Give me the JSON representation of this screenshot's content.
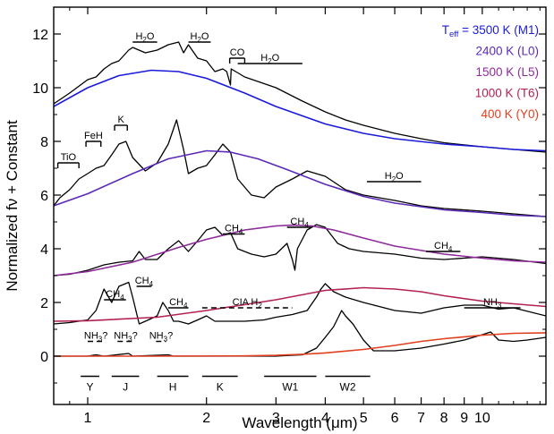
{
  "chart_data": {
    "type": "line",
    "xlabel": "Wavelength (μm)",
    "ylabel": "Normalized fν + Constant",
    "x_scale": "log",
    "xlim": [
      0.82,
      14.5
    ],
    "ylim": [
      -1.8,
      13.0
    ],
    "x_ticks": [
      {
        "value": 1,
        "label": "1"
      },
      {
        "value": 2,
        "label": "2"
      },
      {
        "value": 3,
        "label": "3"
      },
      {
        "value": 4,
        "label": "4"
      },
      {
        "value": 5,
        "label": "5"
      },
      {
        "value": 6,
        "label": "6"
      },
      {
        "value": 7,
        "label": "7"
      },
      {
        "value": 8,
        "label": "8"
      },
      {
        "value": 9,
        "label": "9"
      },
      {
        "value": 10,
        "label": "10"
      }
    ],
    "y_ticks": [
      {
        "value": 0,
        "label": "0"
      },
      {
        "value": 2,
        "label": "2"
      },
      {
        "value": 4,
        "label": "4"
      },
      {
        "value": 6,
        "label": "6"
      },
      {
        "value": 8,
        "label": "8"
      },
      {
        "value": 10,
        "label": "10"
      },
      {
        "value": 12,
        "label": "12"
      }
    ],
    "legend": {
      "position": "top-right",
      "entries": [
        {
          "prefix": "T",
          "sub": "eff",
          "rest": " = 3500 K (M1)",
          "color": "#1a1adb"
        },
        {
          "prefix": "",
          "sub": "",
          "rest": "2400 K (L0)",
          "color": "#5b2ab8"
        },
        {
          "prefix": "",
          "sub": "",
          "rest": "1500 K (L5)",
          "color": "#8e2a9b"
        },
        {
          "prefix": "",
          "sub": "",
          "rest": "1000 K (T6)",
          "color": "#b3234f"
        },
        {
          "prefix": "",
          "sub": "",
          "rest": "400 K (Y0)",
          "color": "#e0401e"
        }
      ]
    },
    "series": [
      {
        "name": "3500 K (M1) spectrum",
        "color": "#000000",
        "x": [
          0.82,
          0.9,
          1.0,
          1.05,
          1.1,
          1.15,
          1.2,
          1.27,
          1.3,
          1.4,
          1.5,
          1.6,
          1.7,
          1.75,
          1.8,
          1.9,
          2.0,
          2.1,
          2.2,
          2.25,
          2.3,
          2.31,
          2.5,
          3.0,
          3.5,
          4.0,
          4.5,
          5.0,
          6.0,
          7.0,
          8.0,
          10.0,
          12.0,
          14.5
        ],
        "values": [
          9.4,
          9.8,
          10.3,
          10.4,
          10.7,
          10.9,
          11.0,
          11.4,
          11.5,
          11.3,
          11.4,
          11.6,
          11.7,
          11.3,
          11.6,
          11.1,
          11.0,
          10.6,
          10.7,
          10.6,
          10.1,
          10.7,
          10.4,
          10.0,
          9.5,
          9.1,
          8.8,
          8.6,
          8.3,
          8.1,
          7.95,
          7.8,
          7.7,
          7.6
        ]
      },
      {
        "name": "3500 K (M1) blackbody",
        "color": "#1a1adb",
        "x": [
          0.82,
          1.0,
          1.2,
          1.45,
          1.7,
          2.0,
          2.5,
          3.0,
          4.0,
          5.0,
          6.0,
          8.0,
          10.0,
          12.0,
          14.5
        ],
        "values": [
          9.3,
          10.0,
          10.45,
          10.65,
          10.6,
          10.35,
          9.8,
          9.3,
          8.65,
          8.3,
          8.1,
          7.9,
          7.8,
          7.7,
          7.65
        ]
      },
      {
        "name": "2400 K (L0) spectrum",
        "color": "#000000",
        "x": [
          0.82,
          0.85,
          0.9,
          0.95,
          1.0,
          1.05,
          1.1,
          1.15,
          1.2,
          1.25,
          1.3,
          1.4,
          1.5,
          1.6,
          1.68,
          1.75,
          1.8,
          1.9,
          2.0,
          2.1,
          2.2,
          2.3,
          2.4,
          2.6,
          2.8,
          3.0,
          3.3,
          3.6,
          4.0,
          4.5,
          5.0,
          6.0,
          7.0,
          8.0,
          10.0,
          12.0,
          14.5
        ],
        "values": [
          5.6,
          5.9,
          6.2,
          6.6,
          6.8,
          7.0,
          7.1,
          7.5,
          7.9,
          8.0,
          7.4,
          6.9,
          7.2,
          7.9,
          8.8,
          7.7,
          6.8,
          7.0,
          7.1,
          7.5,
          7.9,
          7.6,
          6.6,
          6.0,
          5.9,
          6.3,
          6.6,
          6.9,
          6.7,
          6.2,
          6.0,
          5.8,
          5.6,
          5.5,
          5.4,
          5.3,
          5.2
        ]
      },
      {
        "name": "2400 K (L0) blackbody",
        "color": "#5b2ab8",
        "x": [
          0.82,
          1.0,
          1.3,
          1.6,
          2.0,
          2.3,
          2.7,
          3.2,
          4.0,
          5.0,
          6.0,
          8.0,
          10.0,
          12.0,
          14.5
        ],
        "values": [
          5.6,
          6.05,
          6.8,
          7.35,
          7.65,
          7.6,
          7.35,
          6.95,
          6.4,
          5.95,
          5.7,
          5.45,
          5.35,
          5.25,
          5.2
        ]
      },
      {
        "name": "1500 K (L5) spectrum",
        "color": "#000000",
        "x": [
          0.82,
          0.9,
          1.0,
          1.1,
          1.2,
          1.3,
          1.35,
          1.4,
          1.5,
          1.6,
          1.7,
          1.8,
          1.9,
          2.0,
          2.1,
          2.2,
          2.3,
          2.4,
          2.6,
          2.8,
          3.0,
          3.2,
          3.3,
          3.35,
          3.4,
          3.6,
          3.8,
          4.0,
          4.3,
          4.6,
          5.0,
          6.0,
          7.0,
          8.0,
          10.0,
          12.0,
          14.5
        ],
        "values": [
          3.0,
          3.05,
          3.2,
          3.4,
          3.5,
          3.55,
          3.9,
          3.6,
          3.6,
          4.0,
          4.3,
          3.9,
          4.3,
          4.7,
          4.8,
          4.5,
          4.6,
          4.0,
          3.8,
          3.7,
          3.8,
          4.2,
          3.6,
          3.2,
          4.0,
          4.7,
          4.9,
          4.8,
          4.2,
          4.0,
          3.9,
          3.8,
          3.65,
          3.6,
          3.7,
          3.6,
          3.45
        ]
      },
      {
        "name": "1500 K (L5) blackbody",
        "color": "#8e2a9b",
        "x": [
          0.82,
          1.0,
          1.3,
          1.7,
          2.0,
          2.5,
          3.0,
          3.3,
          3.7,
          4.2,
          5.0,
          6.0,
          8.0,
          10.0,
          12.0,
          14.5
        ],
        "values": [
          3.0,
          3.15,
          3.5,
          4.05,
          4.35,
          4.7,
          4.85,
          4.88,
          4.85,
          4.7,
          4.4,
          4.1,
          3.8,
          3.65,
          3.55,
          3.5
        ]
      },
      {
        "name": "1000 K (T6) spectrum",
        "color": "#000000",
        "x": [
          0.82,
          0.9,
          1.0,
          1.05,
          1.1,
          1.15,
          1.2,
          1.27,
          1.3,
          1.35,
          1.4,
          1.5,
          1.55,
          1.6,
          1.65,
          1.7,
          1.8,
          1.9,
          2.0,
          2.1,
          2.3,
          2.5,
          2.8,
          3.0,
          3.3,
          3.6,
          3.8,
          3.9,
          4.0,
          4.2,
          4.5,
          5.0,
          6.0,
          7.0,
          8.0,
          9.0,
          10.0,
          11.0,
          12.0,
          14.5
        ],
        "values": [
          1.2,
          1.25,
          1.35,
          1.7,
          2.5,
          2.0,
          2.6,
          2.75,
          2.2,
          1.2,
          1.3,
          1.5,
          2.0,
          1.7,
          1.3,
          1.3,
          1.2,
          1.35,
          1.5,
          1.3,
          1.3,
          1.3,
          1.35,
          1.45,
          1.55,
          1.7,
          2.2,
          2.5,
          2.7,
          2.4,
          2.2,
          2.0,
          1.7,
          1.6,
          1.8,
          1.9,
          1.9,
          1.75,
          1.8,
          1.5
        ]
      },
      {
        "name": "1000 K (T6) blackbody",
        "color": "#b3234f",
        "x": [
          0.82,
          1.0,
          1.5,
          2.0,
          3.0,
          4.0,
          5.0,
          6.0,
          7.0,
          8.0,
          10.0,
          12.0,
          14.5
        ],
        "values": [
          1.3,
          1.32,
          1.45,
          1.7,
          2.1,
          2.45,
          2.55,
          2.5,
          2.4,
          2.25,
          2.05,
          1.95,
          1.85
        ]
      },
      {
        "name": "400 K (Y0) spectrum",
        "color": "#000000",
        "x": [
          0.82,
          1.0,
          1.05,
          1.1,
          1.27,
          1.3,
          1.6,
          1.65,
          2.0,
          2.5,
          3.0,
          3.5,
          3.8,
          4.0,
          4.2,
          4.4,
          4.5,
          4.7,
          5.0,
          5.3,
          6.0,
          7.0,
          8.0,
          9.0,
          10.0,
          10.5,
          11.0,
          12.0,
          13.0,
          14.5
        ],
        "values": [
          0.0,
          0.0,
          0.05,
          0.0,
          0.1,
          0.0,
          0.05,
          0.0,
          0.0,
          0.0,
          0.0,
          0.05,
          0.3,
          0.7,
          1.1,
          1.7,
          1.5,
          1.2,
          0.6,
          0.2,
          0.2,
          0.3,
          0.45,
          0.6,
          0.8,
          0.9,
          0.6,
          0.55,
          0.6,
          0.7
        ]
      },
      {
        "name": "400 K (Y0) blackbody",
        "color": "#e0401e",
        "x": [
          0.82,
          1.5,
          2.5,
          3.0,
          3.5,
          4.0,
          5.0,
          6.0,
          7.0,
          8.0,
          10.0,
          12.0,
          14.5
        ],
        "values": [
          0.0,
          0.0,
          0.01,
          0.03,
          0.07,
          0.12,
          0.25,
          0.4,
          0.55,
          0.65,
          0.78,
          0.85,
          0.87
        ]
      }
    ],
    "band_annotations": [
      {
        "label": "H",
        "sub": "2",
        "suffix": "O",
        "x1": 1.3,
        "x2": 1.5,
        "y": 11.7,
        "dashed": false
      },
      {
        "label": "H",
        "sub": "2",
        "suffix": "O",
        "x1": 1.8,
        "x2": 2.05,
        "y": 11.7,
        "dashed": false
      },
      {
        "label": "CO",
        "sub": "",
        "suffix": "",
        "x1": 2.29,
        "x2": 2.5,
        "y": 11.1,
        "dashed": false,
        "hook": true
      },
      {
        "label": "H",
        "sub": "2",
        "suffix": "O",
        "x1": 2.4,
        "x2": 3.5,
        "y": 10.9,
        "dashed": false
      },
      {
        "label": "K",
        "sub": "",
        "suffix": "",
        "x1": 1.17,
        "x2": 1.26,
        "y": 8.6,
        "dashed": false,
        "hook": true
      },
      {
        "label": "FeH",
        "sub": "",
        "suffix": "",
        "x1": 0.99,
        "x2": 1.08,
        "y": 8.0,
        "dashed": false,
        "hook": true
      },
      {
        "label": "TiO",
        "sub": "",
        "suffix": "",
        "x1": 0.84,
        "x2": 0.95,
        "y": 7.2,
        "dashed": false,
        "hook": true
      },
      {
        "label": "H",
        "sub": "2",
        "suffix": "O",
        "x1": 5.1,
        "x2": 7.0,
        "y": 6.5,
        "dashed": false
      },
      {
        "label": "CH",
        "sub": "4",
        "suffix": "",
        "x1": 2.2,
        "x2": 2.5,
        "y": 4.55,
        "dashed": false
      },
      {
        "label": "CH",
        "sub": "4",
        "suffix": "",
        "x1": 3.2,
        "x2": 3.7,
        "y": 4.8,
        "dashed": false
      },
      {
        "label": "CH",
        "sub": "4",
        "suffix": "",
        "x1": 7.2,
        "x2": 8.8,
        "y": 3.9,
        "dashed": false
      },
      {
        "label": "CH",
        "sub": "4",
        "suffix": "",
        "x1": 1.1,
        "x2": 1.25,
        "y": 2.1,
        "dashed": false
      },
      {
        "label": "CH",
        "sub": "4",
        "suffix": "",
        "x1": 1.33,
        "x2": 1.45,
        "y": 2.6,
        "dashed": false
      },
      {
        "label": "CH",
        "sub": "4",
        "suffix": "",
        "x1": 1.6,
        "x2": 1.8,
        "y": 1.8,
        "dashed": false
      },
      {
        "label": "CIA H",
        "sub": "2",
        "suffix": "",
        "x1": 1.95,
        "x2": 3.3,
        "y": 1.8,
        "dashed": true
      },
      {
        "label": "NH",
        "sub": "3",
        "suffix": "",
        "x1": 9.0,
        "x2": 12.5,
        "y": 1.8,
        "dashed": false
      },
      {
        "label": "NH",
        "sub": "3",
        "suffix": "?",
        "x1": 1.0,
        "x2": 1.1,
        "y": 0.55,
        "dashed": true
      },
      {
        "label": "NH",
        "sub": "3",
        "suffix": "?",
        "x1": 1.19,
        "x2": 1.31,
        "y": 0.55,
        "dashed": true
      },
      {
        "label": "NH",
        "sub": "3",
        "suffix": "?",
        "x1": 1.49,
        "x2": 1.58,
        "y": 0.55,
        "dashed": true
      }
    ],
    "filters": [
      {
        "label": "Y",
        "x1": 0.96,
        "x2": 1.07
      },
      {
        "label": "J",
        "x1": 1.15,
        "x2": 1.35
      },
      {
        "label": "H",
        "x1": 1.5,
        "x2": 1.8
      },
      {
        "label": "K",
        "x1": 1.95,
        "x2": 2.4
      },
      {
        "label": "W1",
        "x1": 2.8,
        "x2": 3.8
      },
      {
        "label": "W2",
        "x1": 4.0,
        "x2": 5.2
      }
    ]
  }
}
